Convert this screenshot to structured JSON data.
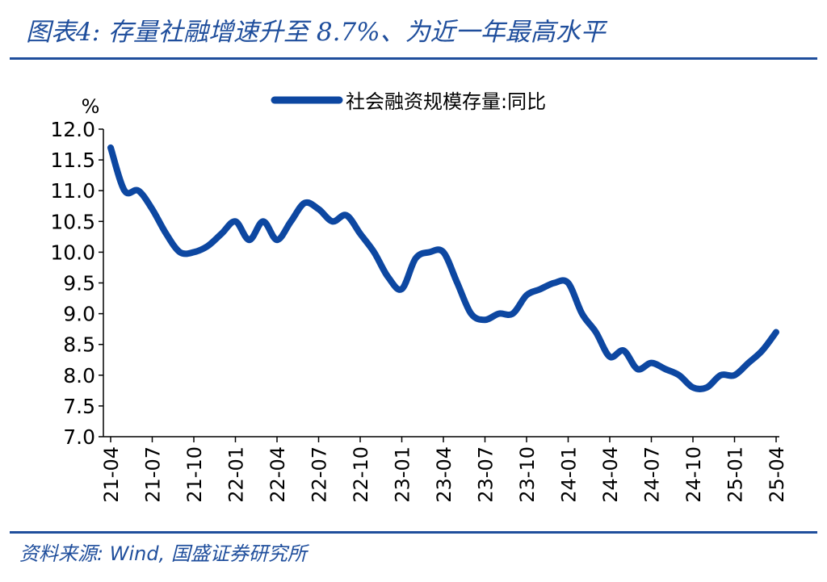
{
  "header": {
    "title": "图表4:  存量社融增速升至 8.7%、为近一年最高水平"
  },
  "footer": {
    "source": "资料来源:  Wind,  国盛证券研究所"
  },
  "colors": {
    "accent": "#1f4e9c",
    "series": "#0d47a1"
  },
  "chart_data": {
    "type": "line",
    "ylabel": "%",
    "ylim": [
      7.0,
      12.0
    ],
    "yticks": [
      "12.0",
      "11.5",
      "11.0",
      "10.5",
      "10.0",
      "9.5",
      "9.0",
      "8.5",
      "8.0",
      "7.5",
      "7.0"
    ],
    "xticks": [
      "21-04",
      "21-07",
      "21-10",
      "22-01",
      "22-04",
      "22-07",
      "22-10",
      "23-01",
      "23-04",
      "23-07",
      "23-10",
      "24-01",
      "24-04",
      "24-07",
      "24-10",
      "25-01",
      "25-04"
    ],
    "legend_position": "top-center",
    "grid": false,
    "series": [
      {
        "name": "社会融资规模存量:同比",
        "x": [
          "21-04",
          "21-05",
          "21-06",
          "21-07",
          "21-08",
          "21-09",
          "21-10",
          "21-11",
          "21-12",
          "22-01",
          "22-02",
          "22-03",
          "22-04",
          "22-05",
          "22-06",
          "22-07",
          "22-08",
          "22-09",
          "22-10",
          "22-11",
          "22-12",
          "23-01",
          "23-02",
          "23-03",
          "23-04",
          "23-05",
          "23-06",
          "23-07",
          "23-08",
          "23-09",
          "23-10",
          "23-11",
          "23-12",
          "24-01",
          "24-02",
          "24-03",
          "24-04",
          "24-05",
          "24-06",
          "24-07",
          "24-08",
          "24-09",
          "24-10",
          "24-11",
          "24-12",
          "25-01",
          "25-02",
          "25-03",
          "25-04"
        ],
        "values": [
          11.7,
          11.0,
          11.0,
          10.7,
          10.3,
          10.0,
          10.0,
          10.1,
          10.3,
          10.5,
          10.2,
          10.5,
          10.2,
          10.5,
          10.8,
          10.7,
          10.5,
          10.6,
          10.3,
          10.0,
          9.6,
          9.4,
          9.9,
          10.0,
          10.0,
          9.5,
          9.0,
          8.9,
          9.0,
          9.0,
          9.3,
          9.4,
          9.5,
          9.5,
          9.0,
          8.7,
          8.3,
          8.4,
          8.1,
          8.2,
          8.1,
          8.0,
          7.8,
          7.8,
          8.0,
          8.0,
          8.2,
          8.4,
          8.7
        ]
      }
    ]
  }
}
